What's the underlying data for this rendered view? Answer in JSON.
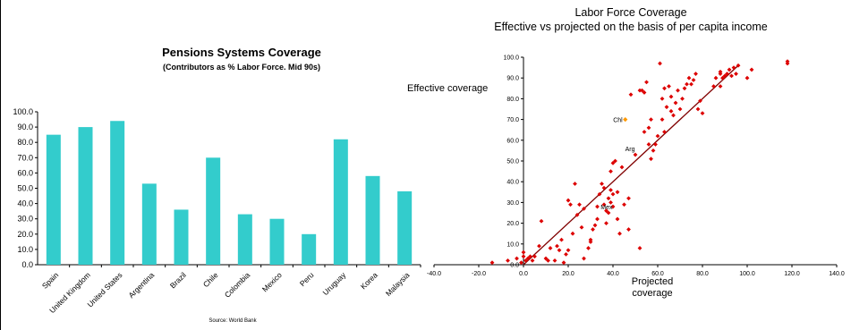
{
  "chart_data": [
    {
      "type": "bar",
      "title": "Pensions Systems Coverage",
      "subtitle": "(Contributors as % Labor Force. Mid 90s)",
      "source": "Source: World Bank",
      "categories": [
        "Spain",
        "United Kingdom",
        "United States",
        "Argentina",
        "Brazil",
        "Chile",
        "Colombia",
        "Mexico",
        "Peru",
        "Uruguay",
        "Korea",
        "Malaysia"
      ],
      "values": [
        85,
        90,
        94,
        53,
        36,
        70,
        33,
        30,
        20,
        82,
        58,
        48
      ],
      "ylim": [
        0,
        100
      ],
      "yticks": [
        "0.0",
        "10.0",
        "20.0",
        "30.0",
        "40.0",
        "50.0",
        "60.0",
        "70.0",
        "80.0",
        "90.0",
        "100.0"
      ],
      "bar_color": "#33cccc",
      "grid": false
    },
    {
      "type": "scatter",
      "title_lines": [
        "Labor Force Coverage",
        "Effective vs projected on the basis of per capita income"
      ],
      "ylabel": "Effective coverage",
      "xlabel_lines": [
        "Projected",
        "coverage"
      ],
      "xlim": [
        -40,
        140
      ],
      "ylim": [
        0,
        100
      ],
      "xticks": [
        "-40.0",
        "-20.0",
        "0.0",
        "20.0",
        "40.0",
        "60.0",
        "80.0",
        "100.0",
        "120.0",
        "140.0"
      ],
      "yticks": [
        "0.0",
        "10.0",
        "20.0",
        "30.0",
        "40.0",
        "50.0",
        "60.0",
        "70.0",
        "80.0",
        "90.0",
        "100.0"
      ],
      "point_color": "#dd0000",
      "highlight_color": "#ff9900",
      "trend_color": "#800000",
      "trend_line": [
        [
          0,
          0
        ],
        [
          96,
          96
        ]
      ],
      "annotations": [
        {
          "label": "Chl",
          "x": 45.5,
          "y": 70
        },
        {
          "label": "Arg",
          "x": 51,
          "y": 56
        },
        {
          "label": "Mex",
          "x": 41,
          "y": 28
        }
      ],
      "points": [
        [
          -14,
          1
        ],
        [
          -7,
          2
        ],
        [
          -3,
          3
        ],
        [
          -1,
          1
        ],
        [
          0,
          4
        ],
        [
          0,
          6
        ],
        [
          1,
          2
        ],
        [
          2,
          3
        ],
        [
          3,
          4
        ],
        [
          4,
          2
        ],
        [
          5,
          4
        ],
        [
          7,
          9
        ],
        [
          8,
          21
        ],
        [
          10,
          3
        ],
        [
          11,
          2
        ],
        [
          12,
          8
        ],
        [
          14,
          2
        ],
        [
          15,
          9
        ],
        [
          16,
          7
        ],
        [
          17,
          12
        ],
        [
          18,
          1
        ],
        [
          19,
          5
        ],
        [
          20,
          31
        ],
        [
          20,
          7
        ],
        [
          21,
          29
        ],
        [
          22,
          15
        ],
        [
          23,
          39
        ],
        [
          24,
          24
        ],
        [
          25,
          29
        ],
        [
          26,
          18
        ],
        [
          27,
          3
        ],
        [
          27,
          27
        ],
        [
          29,
          8
        ],
        [
          30,
          12
        ],
        [
          30,
          11
        ],
        [
          31,
          17
        ],
        [
          32,
          19
        ],
        [
          33,
          22
        ],
        [
          33,
          28
        ],
        [
          34,
          34
        ],
        [
          35,
          39
        ],
        [
          36,
          37
        ],
        [
          36,
          29
        ],
        [
          37,
          26
        ],
        [
          37,
          20
        ],
        [
          38,
          25
        ],
        [
          38,
          32
        ],
        [
          39,
          36
        ],
        [
          39,
          45
        ],
        [
          39,
          30
        ],
        [
          40,
          49
        ],
        [
          40,
          34
        ],
        [
          40,
          28
        ],
        [
          41,
          50
        ],
        [
          42,
          35
        ],
        [
          42,
          22
        ],
        [
          43,
          15
        ],
        [
          44,
          47
        ],
        [
          45,
          29
        ],
        [
          47,
          32
        ],
        [
          47,
          17
        ],
        [
          48,
          82
        ],
        [
          50,
          53
        ],
        [
          52,
          8
        ],
        [
          52,
          84
        ],
        [
          53,
          84
        ],
        [
          54,
          64
        ],
        [
          54,
          83
        ],
        [
          55,
          88
        ],
        [
          56,
          58
        ],
        [
          56,
          66
        ],
        [
          57,
          70
        ],
        [
          57,
          51
        ],
        [
          58,
          55
        ],
        [
          59,
          58
        ],
        [
          60,
          62
        ],
        [
          61,
          97
        ],
        [
          62,
          70
        ],
        [
          62,
          80
        ],
        [
          63,
          64
        ],
        [
          63,
          85
        ],
        [
          64,
          76
        ],
        [
          65,
          86
        ],
        [
          66,
          81
        ],
        [
          66,
          74
        ],
        [
          67,
          72
        ],
        [
          68,
          78
        ],
        [
          69,
          84
        ],
        [
          70,
          75
        ],
        [
          71,
          80
        ],
        [
          72,
          85
        ],
        [
          73,
          87
        ],
        [
          74,
          90
        ],
        [
          75,
          87
        ],
        [
          76,
          89
        ],
        [
          77,
          92
        ],
        [
          78,
          75
        ],
        [
          79,
          79
        ],
        [
          80,
          73
        ],
        [
          85,
          86
        ],
        [
          86,
          90
        ],
        [
          88,
          92
        ],
        [
          88,
          86
        ],
        [
          88,
          93
        ],
        [
          89,
          90
        ],
        [
          90,
          91
        ],
        [
          91,
          92
        ],
        [
          92,
          94
        ],
        [
          93,
          91
        ],
        [
          94,
          95
        ],
        [
          95,
          92
        ],
        [
          96,
          96
        ],
        [
          100,
          90
        ],
        [
          102,
          94
        ],
        [
          118,
          98
        ],
        [
          118,
          97
        ]
      ],
      "highlight_points": [
        [
          45.5,
          70
        ]
      ],
      "grid": false
    }
  ]
}
